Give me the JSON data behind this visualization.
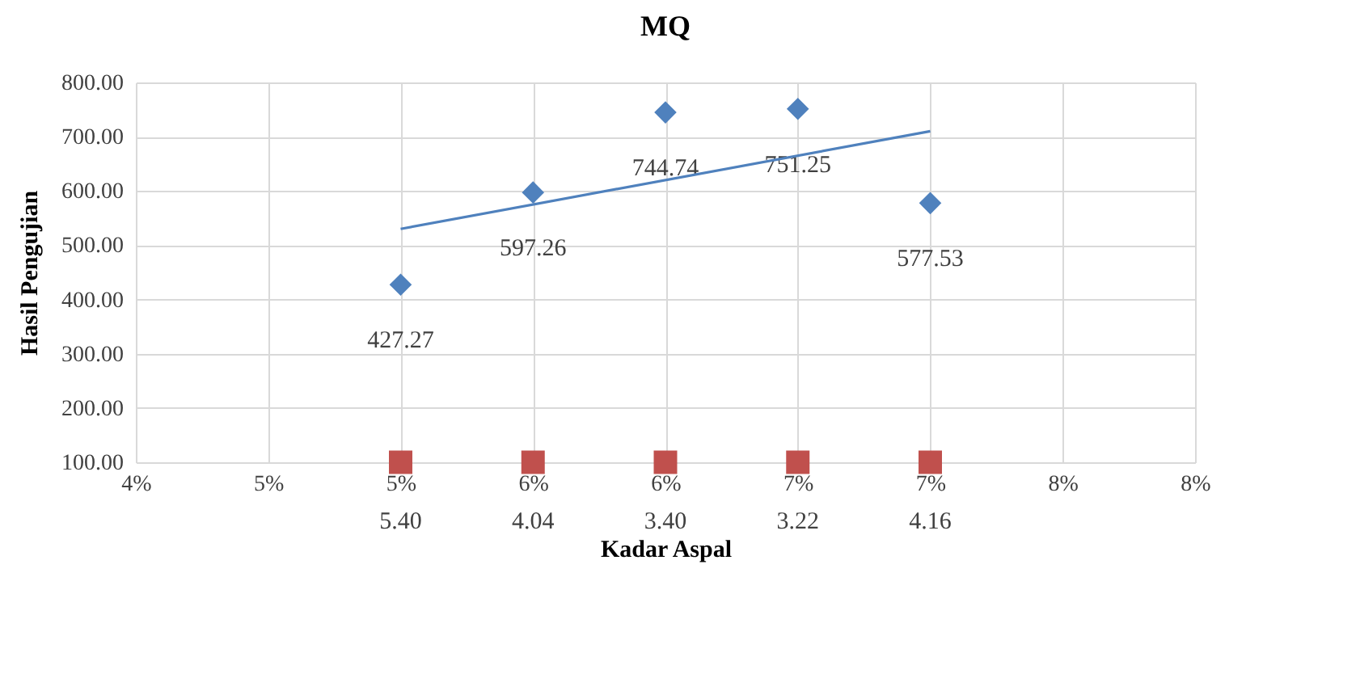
{
  "chart_data": {
    "type": "scatter",
    "title": "MQ",
    "xlabel": "Kadar Aspal",
    "ylabel": "Hasil Pengujian",
    "x": [
      5,
      5.5,
      6,
      6.5,
      7
    ],
    "series": [
      {
        "color": "#4f81bd",
        "marker": "diamond",
        "values": [
          427.27,
          597.26,
          744.74,
          751.25,
          577.53
        ],
        "value_labels": [
          "427.27",
          "597.26",
          "744.74",
          "751.25",
          "577.53"
        ]
      },
      {
        "color": "#c0504d",
        "marker": "square",
        "values": [
          100,
          100,
          100,
          100,
          100
        ]
      },
      {
        "type": "line",
        "color": "#4f81bd",
        "marker": "none",
        "x": [
          5,
          7
        ],
        "values": [
          530,
          710
        ]
      }
    ],
    "annotations": [
      {
        "text": "5.40",
        "x": 5,
        "y": 100
      },
      {
        "text": "4.04",
        "x": 5.5,
        "y": 100
      },
      {
        "text": "3.40",
        "x": 6,
        "y": 100
      },
      {
        "text": "3.22",
        "x": 6.5,
        "y": 100
      },
      {
        "text": "4.16",
        "x": 7,
        "y": 100
      }
    ],
    "xlim": [
      4,
      8
    ],
    "xticks": [
      {
        "value": 4,
        "label": "4%"
      },
      {
        "value": 4.5,
        "label": "5%"
      },
      {
        "value": 5,
        "label": "5%"
      },
      {
        "value": 5.5,
        "label": "6%"
      },
      {
        "value": 6,
        "label": "6%"
      },
      {
        "value": 6.5,
        "label": "7%"
      },
      {
        "value": 7,
        "label": "7%"
      },
      {
        "value": 7.5,
        "label": "8%"
      },
      {
        "value": 8,
        "label": "8%"
      }
    ],
    "ylim": [
      100,
      800
    ],
    "yticks": [
      {
        "value": 100,
        "label": "100.00"
      },
      {
        "value": 200,
        "label": "200.00"
      },
      {
        "value": 300,
        "label": "300.00"
      },
      {
        "value": 400,
        "label": "400.00"
      },
      {
        "value": 500,
        "label": "500.00"
      },
      {
        "value": 600,
        "label": "600.00"
      },
      {
        "value": 700,
        "label": "700.00"
      },
      {
        "value": 800,
        "label": "800.00"
      }
    ],
    "grid": true
  }
}
